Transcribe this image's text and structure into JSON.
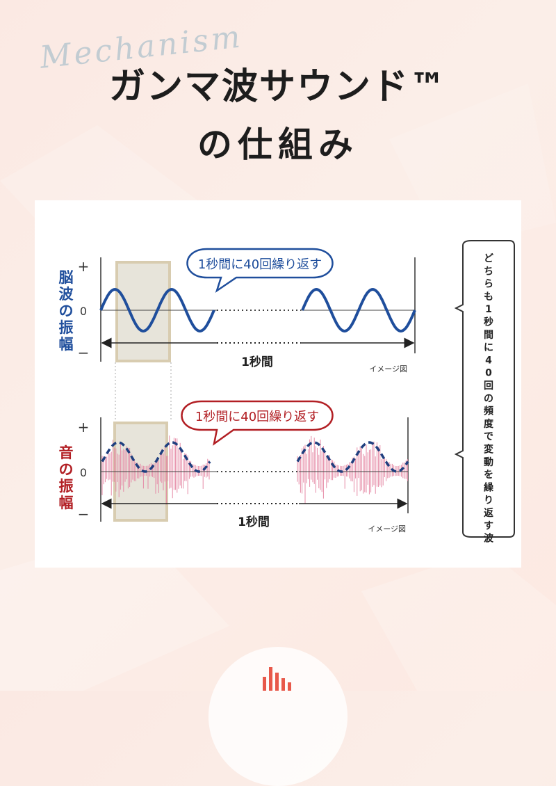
{
  "header": {
    "script_word": "Mechanism",
    "title_line1": "ガンマ波サウンド™",
    "title_line2": "の仕組み"
  },
  "diagram": {
    "top": {
      "ylabel": "脳波の振幅",
      "callout": "1秒間に40回繰り返す",
      "tick_plus": "+",
      "tick_zero": "0",
      "tick_minus": "−",
      "duration_label": "1秒間",
      "image_note": "イメージ図"
    },
    "bottom": {
      "ylabel": "音の振幅",
      "callout": "1秒間に40回繰り返す",
      "tick_plus": "+",
      "tick_zero": "0",
      "tick_minus": "−",
      "duration_label": "1秒間",
      "image_note": "イメージ図"
    },
    "side_note": "どちらも1秒間に40回の頻度で変動を繰り返す波"
  },
  "colors": {
    "brain_wave": "#1f4e9c",
    "sound_label": "#b21f24",
    "sound_bars": "#e58aa6",
    "highlight_fill": "#e7e4da",
    "highlight_stroke": "#d8ccb0"
  }
}
